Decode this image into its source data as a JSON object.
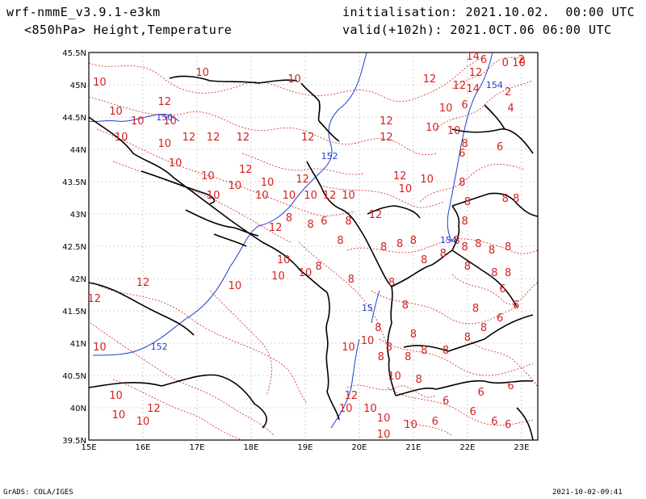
{
  "header": {
    "model": "wrf-nmmE_v3.9.1-e3km",
    "level_fields": "<850hPa> Height,Temperature",
    "initialisation": "initialisation: 2021.10.02.  00:00 UTC",
    "valid": "valid(+102h): 2021.0CT.06 06:00 UTC"
  },
  "footer": {
    "left": "GrADS: COLA/IGES",
    "right": "2021-10-02-09:41"
  },
  "map": {
    "lon_ticks": [
      "15E",
      "16E",
      "17E",
      "18E",
      "19E",
      "20E",
      "21E",
      "22E",
      "23E"
    ],
    "lat_ticks": [
      "45.5N",
      "45N",
      "44.5N",
      "44N",
      "43.5N",
      "43N",
      "42.5N",
      "42N",
      "41.5N",
      "41N",
      "40.5N",
      "40N",
      "39.5N"
    ],
    "colors": {
      "temperature": "#d42020",
      "height": "#1f3fd0",
      "coast": "#000000",
      "grid": "#aaaaaa"
    },
    "temperature_labels": [
      {
        "t": "10",
        "lon": 15.2,
        "lat": 45.05
      },
      {
        "t": "10",
        "lon": 17.1,
        "lat": 45.2
      },
      {
        "t": "10",
        "lon": 18.8,
        "lat": 45.1
      },
      {
        "t": "12",
        "lon": 16.4,
        "lat": 44.75
      },
      {
        "t": "10",
        "lon": 15.5,
        "lat": 44.6
      },
      {
        "t": "10",
        "lon": 15.9,
        "lat": 44.45
      },
      {
        "t": "10",
        "lon": 16.5,
        "lat": 44.45
      },
      {
        "t": "10",
        "lon": 15.6,
        "lat": 44.2
      },
      {
        "t": "10",
        "lon": 16.4,
        "lat": 44.1
      },
      {
        "t": "12",
        "lon": 16.85,
        "lat": 44.2
      },
      {
        "t": "12",
        "lon": 17.3,
        "lat": 44.2
      },
      {
        "t": "12",
        "lon": 17.85,
        "lat": 44.2
      },
      {
        "t": "12",
        "lon": 19.05,
        "lat": 44.2
      },
      {
        "t": "12",
        "lon": 20.5,
        "lat": 44.45
      },
      {
        "t": "12",
        "lon": 20.5,
        "lat": 44.2
      },
      {
        "t": "10",
        "lon": 16.6,
        "lat": 43.8
      },
      {
        "t": "10",
        "lon": 17.2,
        "lat": 43.6
      },
      {
        "t": "12",
        "lon": 17.9,
        "lat": 43.7
      },
      {
        "t": "10",
        "lon": 17.7,
        "lat": 43.45
      },
      {
        "t": "10",
        "lon": 17.3,
        "lat": 43.3
      },
      {
        "t": "10",
        "lon": 18.3,
        "lat": 43.5
      },
      {
        "t": "10",
        "lon": 18.2,
        "lat": 43.3
      },
      {
        "t": "12",
        "lon": 18.95,
        "lat": 43.55
      },
      {
        "t": "10",
        "lon": 18.7,
        "lat": 43.3
      },
      {
        "t": "10",
        "lon": 19.1,
        "lat": 43.3
      },
      {
        "t": "12",
        "lon": 19.45,
        "lat": 43.3
      },
      {
        "t": "10",
        "lon": 19.8,
        "lat": 43.3
      },
      {
        "t": "12",
        "lon": 20.75,
        "lat": 43.6
      },
      {
        "t": "10",
        "lon": 21.25,
        "lat": 43.55
      },
      {
        "t": "10",
        "lon": 20.85,
        "lat": 43.4
      },
      {
        "t": "8",
        "lon": 18.7,
        "lat": 42.95
      },
      {
        "t": "8",
        "lon": 19.1,
        "lat": 42.85
      },
      {
        "t": "6",
        "lon": 19.35,
        "lat": 42.9
      },
      {
        "t": "12",
        "lon": 20.3,
        "lat": 43.0
      },
      {
        "t": "8",
        "lon": 19.8,
        "lat": 42.9
      },
      {
        "t": "8",
        "lon": 19.65,
        "lat": 42.6
      },
      {
        "t": "8",
        "lon": 19.25,
        "lat": 42.2
      },
      {
        "t": "12",
        "lon": 18.45,
        "lat": 42.8
      },
      {
        "t": "10",
        "lon": 18.6,
        "lat": 42.3
      },
      {
        "t": "10",
        "lon": 18.5,
        "lat": 42.05
      },
      {
        "t": "10",
        "lon": 17.7,
        "lat": 41.9
      },
      {
        "t": "12",
        "lon": 16.0,
        "lat": 41.95
      },
      {
        "t": "12",
        "lon": 15.1,
        "lat": 41.7
      },
      {
        "t": "10",
        "lon": 15.2,
        "lat": 40.95
      },
      {
        "t": "10",
        "lon": 15.5,
        "lat": 40.2
      },
      {
        "t": "12",
        "lon": 16.2,
        "lat": 40.0
      },
      {
        "t": "10",
        "lon": 15.55,
        "lat": 39.9
      },
      {
        "t": "10",
        "lon": 16.0,
        "lat": 39.8
      },
      {
        "t": "10",
        "lon": 19.0,
        "lat": 42.1
      },
      {
        "t": "8",
        "lon": 19.85,
        "lat": 42.0
      },
      {
        "t": "8",
        "lon": 20.45,
        "lat": 42.5
      },
      {
        "t": "8",
        "lon": 20.75,
        "lat": 42.55
      },
      {
        "t": "8",
        "lon": 20.6,
        "lat": 41.95
      },
      {
        "t": "8",
        "lon": 20.85,
        "lat": 41.6
      },
      {
        "t": "8",
        "lon": 20.35,
        "lat": 41.25
      },
      {
        "t": "10",
        "lon": 20.15,
        "lat": 41.05
      },
      {
        "t": "8",
        "lon": 20.55,
        "lat": 40.95
      },
      {
        "t": "10",
        "lon": 19.8,
        "lat": 40.95
      },
      {
        "t": "8",
        "lon": 20.4,
        "lat": 40.8
      },
      {
        "t": "8",
        "lon": 20.9,
        "lat": 40.8
      },
      {
        "t": "8",
        "lon": 21.0,
        "lat": 41.15
      },
      {
        "t": "8",
        "lon": 21.1,
        "lat": 40.45
      },
      {
        "t": "10",
        "lon": 20.65,
        "lat": 40.5
      },
      {
        "t": "12",
        "lon": 19.85,
        "lat": 40.2
      },
      {
        "t": "10",
        "lon": 19.75,
        "lat": 40.0
      },
      {
        "t": "10",
        "lon": 20.2,
        "lat": 40.0
      },
      {
        "t": "10",
        "lon": 20.45,
        "lat": 39.85
      },
      {
        "t": "10",
        "lon": 20.95,
        "lat": 39.75
      },
      {
        "t": "10",
        "lon": 20.45,
        "lat": 39.6
      },
      {
        "t": "6",
        "lon": 21.4,
        "lat": 39.8
      },
      {
        "t": "6",
        "lon": 21.6,
        "lat": 40.12
      },
      {
        "t": "6",
        "lon": 22.1,
        "lat": 39.95
      },
      {
        "t": "6",
        "lon": 22.25,
        "lat": 40.25
      },
      {
        "t": "6",
        "lon": 22.5,
        "lat": 39.8
      },
      {
        "t": "6",
        "lon": 22.8,
        "lat": 40.35
      },
      {
        "t": "6",
        "lon": 22.75,
        "lat": 39.75
      },
      {
        "t": "8",
        "lon": 21.2,
        "lat": 40.9
      },
      {
        "t": "8",
        "lon": 21.6,
        "lat": 40.9
      },
      {
        "t": "8",
        "lon": 22.0,
        "lat": 41.1
      },
      {
        "t": "8",
        "lon": 22.3,
        "lat": 41.25
      },
      {
        "t": "6",
        "lon": 22.6,
        "lat": 41.4
      },
      {
        "t": "6",
        "lon": 22.9,
        "lat": 41.6
      },
      {
        "t": "8",
        "lon": 22.15,
        "lat": 41.55
      },
      {
        "t": "6",
        "lon": 22.65,
        "lat": 41.85
      },
      {
        "t": "8",
        "lon": 22.5,
        "lat": 42.1
      },
      {
        "t": "8",
        "lon": 22.0,
        "lat": 42.2
      },
      {
        "t": "8",
        "lon": 21.95,
        "lat": 42.5
      },
      {
        "t": "8",
        "lon": 22.2,
        "lat": 42.55
      },
      {
        "t": "8",
        "lon": 22.45,
        "lat": 42.45
      },
      {
        "t": "8",
        "lon": 22.75,
        "lat": 42.5
      },
      {
        "t": "8",
        "lon": 22.75,
        "lat": 42.1
      },
      {
        "t": "8",
        "lon": 21.95,
        "lat": 42.9
      },
      {
        "t": "8",
        "lon": 21.8,
        "lat": 42.6
      },
      {
        "t": "8",
        "lon": 21.55,
        "lat": 42.4
      },
      {
        "t": "8",
        "lon": 21.2,
        "lat": 42.3
      },
      {
        "t": "8",
        "lon": 21.0,
        "lat": 42.6
      },
      {
        "t": "8",
        "lon": 21.9,
        "lat": 43.5
      },
      {
        "t": "8",
        "lon": 22.0,
        "lat": 43.2
      },
      {
        "t": "8",
        "lon": 22.7,
        "lat": 43.25
      },
      {
        "t": "8",
        "lon": 22.9,
        "lat": 43.25
      },
      {
        "t": "10",
        "lon": 21.75,
        "lat": 44.3
      },
      {
        "t": "10",
        "lon": 21.6,
        "lat": 44.65
      },
      {
        "t": "10",
        "lon": 21.35,
        "lat": 44.35
      },
      {
        "t": "8",
        "lon": 21.95,
        "lat": 44.1
      },
      {
        "t": "6",
        "lon": 22.6,
        "lat": 44.05
      },
      {
        "t": "6",
        "lon": 21.9,
        "lat": 43.95
      },
      {
        "t": "12",
        "lon": 21.85,
        "lat": 45.0
      },
      {
        "t": "12",
        "lon": 22.15,
        "lat": 45.2
      },
      {
        "t": "14",
        "lon": 22.1,
        "lat": 44.95
      },
      {
        "t": "2",
        "lon": 22.75,
        "lat": 44.9
      },
      {
        "t": "4",
        "lon": 22.8,
        "lat": 44.65
      },
      {
        "t": "6",
        "lon": 22.3,
        "lat": 45.4
      },
      {
        "t": "0",
        "lon": 22.7,
        "lat": 45.35
      },
      {
        "t": "10",
        "lon": 22.95,
        "lat": 45.35
      },
      {
        "t": "2",
        "lon": 23.0,
        "lat": 45.4
      },
      {
        "t": "12",
        "lon": 21.3,
        "lat": 45.1
      },
      {
        "t": "14",
        "lon": 22.1,
        "lat": 45.45
      },
      {
        "t": "6",
        "lon": 21.95,
        "lat": 44.7
      }
    ],
    "height_labels": [
      {
        "t": "150",
        "lon": 16.4,
        "lat": 44.5
      },
      {
        "t": "152",
        "lon": 19.45,
        "lat": 43.9
      },
      {
        "t": "154",
        "lon": 22.5,
        "lat": 45.0
      },
      {
        "t": "154",
        "lon": 21.65,
        "lat": 42.6
      },
      {
        "t": "15",
        "lon": 20.15,
        "lat": 41.55
      },
      {
        "t": "152",
        "lon": 16.3,
        "lat": 40.95
      }
    ]
  }
}
